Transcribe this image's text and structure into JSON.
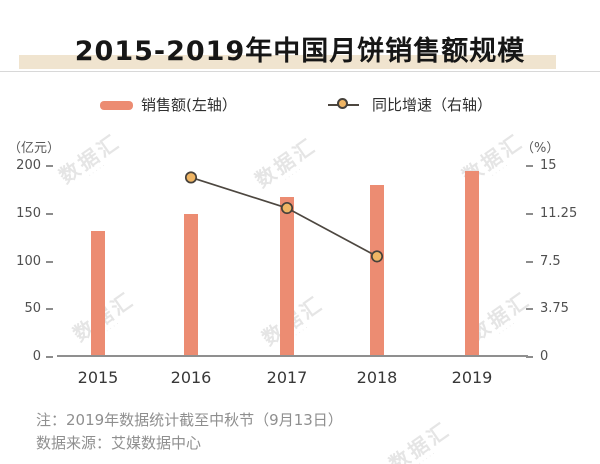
{
  "title": "2015-2019年中国月饼销售额规模",
  "legend": {
    "bar_label": "销售额(左轴）",
    "line_label": "同比增速（右轴）"
  },
  "watermark": "数据汇",
  "notes": {
    "line1": "注：2019年数据统计截至中秋节（9月13日）",
    "line2": "数据来源：艾媒数据中心"
  },
  "colors": {
    "bar": "#ec8c72",
    "line": "#4d4740",
    "marker_fill": "#efb564",
    "marker_stroke": "#46413b",
    "title_band": "#f0e4cf",
    "note_text": "#8f8f8f"
  },
  "chart_data": {
    "type": "bar+line",
    "title": "2015-2019年中国月饼销售额规模",
    "categories": [
      "2015",
      "2016",
      "2017",
      "2018",
      "2019"
    ],
    "series": [
      {
        "name": "销售额(左轴）",
        "type": "bar",
        "axis": "left",
        "unit": "亿元",
        "color": "#ec8c72",
        "values": [
          132,
          150,
          168,
          180,
          195
        ]
      },
      {
        "name": "同比增速（右轴）",
        "type": "line",
        "axis": "right",
        "unit": "%",
        "color": "#4d4740",
        "marker_fill": "#efb564",
        "values": [
          null,
          14.1,
          11.7,
          7.9,
          null
        ]
      }
    ],
    "left_axis": {
      "label": "（亿元）",
      "tick_labels": [
        "200",
        "150",
        "100",
        "50",
        "0"
      ],
      "lim": [
        0,
        200
      ]
    },
    "right_axis": {
      "label": "（%）",
      "tick_labels": [
        "15",
        "11.25",
        "7.5",
        "3.75",
        "0"
      ],
      "lim": [
        0,
        15
      ]
    },
    "grid": false,
    "legend_position": "top"
  }
}
